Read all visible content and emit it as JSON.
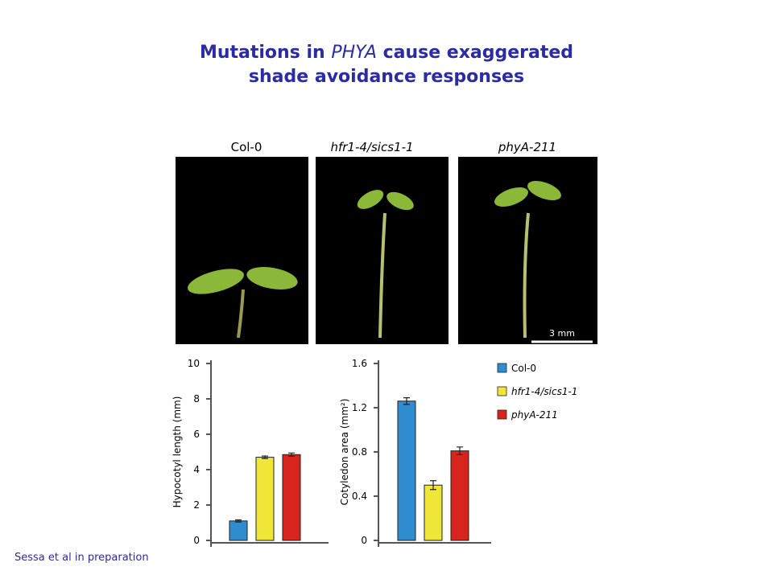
{
  "title": [
    "Mutations in ",
    "PHYA",
    " cause exaggerated",
    "shade avoidance responses"
  ],
  "photo_labels": [
    "Col-0",
    "hfr1-4/sics1-1",
    "phyA-211"
  ],
  "scale_bar": "3 mm",
  "citation": "Sessa et al in preparation",
  "chart_data": [
    {
      "type": "bar",
      "y_label": "Hypocotyl length (mm)",
      "ylim": [
        0,
        10
      ],
      "yticks": [
        0,
        2,
        4,
        6,
        8,
        10
      ],
      "series": [
        {
          "color": "#2f8ccf",
          "values": [
            1.1
          ],
          "errors": [
            0.06
          ]
        },
        {
          "color": "#efe637",
          "values": [
            4.7
          ],
          "errors": [
            0.07
          ]
        },
        {
          "color": "#d7241c",
          "values": [
            4.85
          ],
          "errors": [
            0.09
          ]
        }
      ]
    },
    {
      "type": "bar",
      "y_label": "Cotyledon area (mm²)",
      "ylim": [
        0,
        1.6
      ],
      "yticks": [
        0,
        0.4,
        0.8,
        1.2,
        1.6
      ],
      "series": [
        {
          "name": "Col-0",
          "color": "#2f8ccf",
          "values": [
            1.26
          ],
          "errors": [
            0.03
          ]
        },
        {
          "name": "hfr1-4/sics1-1",
          "color": "#efe637",
          "values": [
            0.5
          ],
          "errors": [
            0.04
          ]
        },
        {
          "name": "phyA-211",
          "color": "#d7241c",
          "values": [
            0.81
          ],
          "errors": [
            0.035
          ]
        }
      ]
    }
  ]
}
